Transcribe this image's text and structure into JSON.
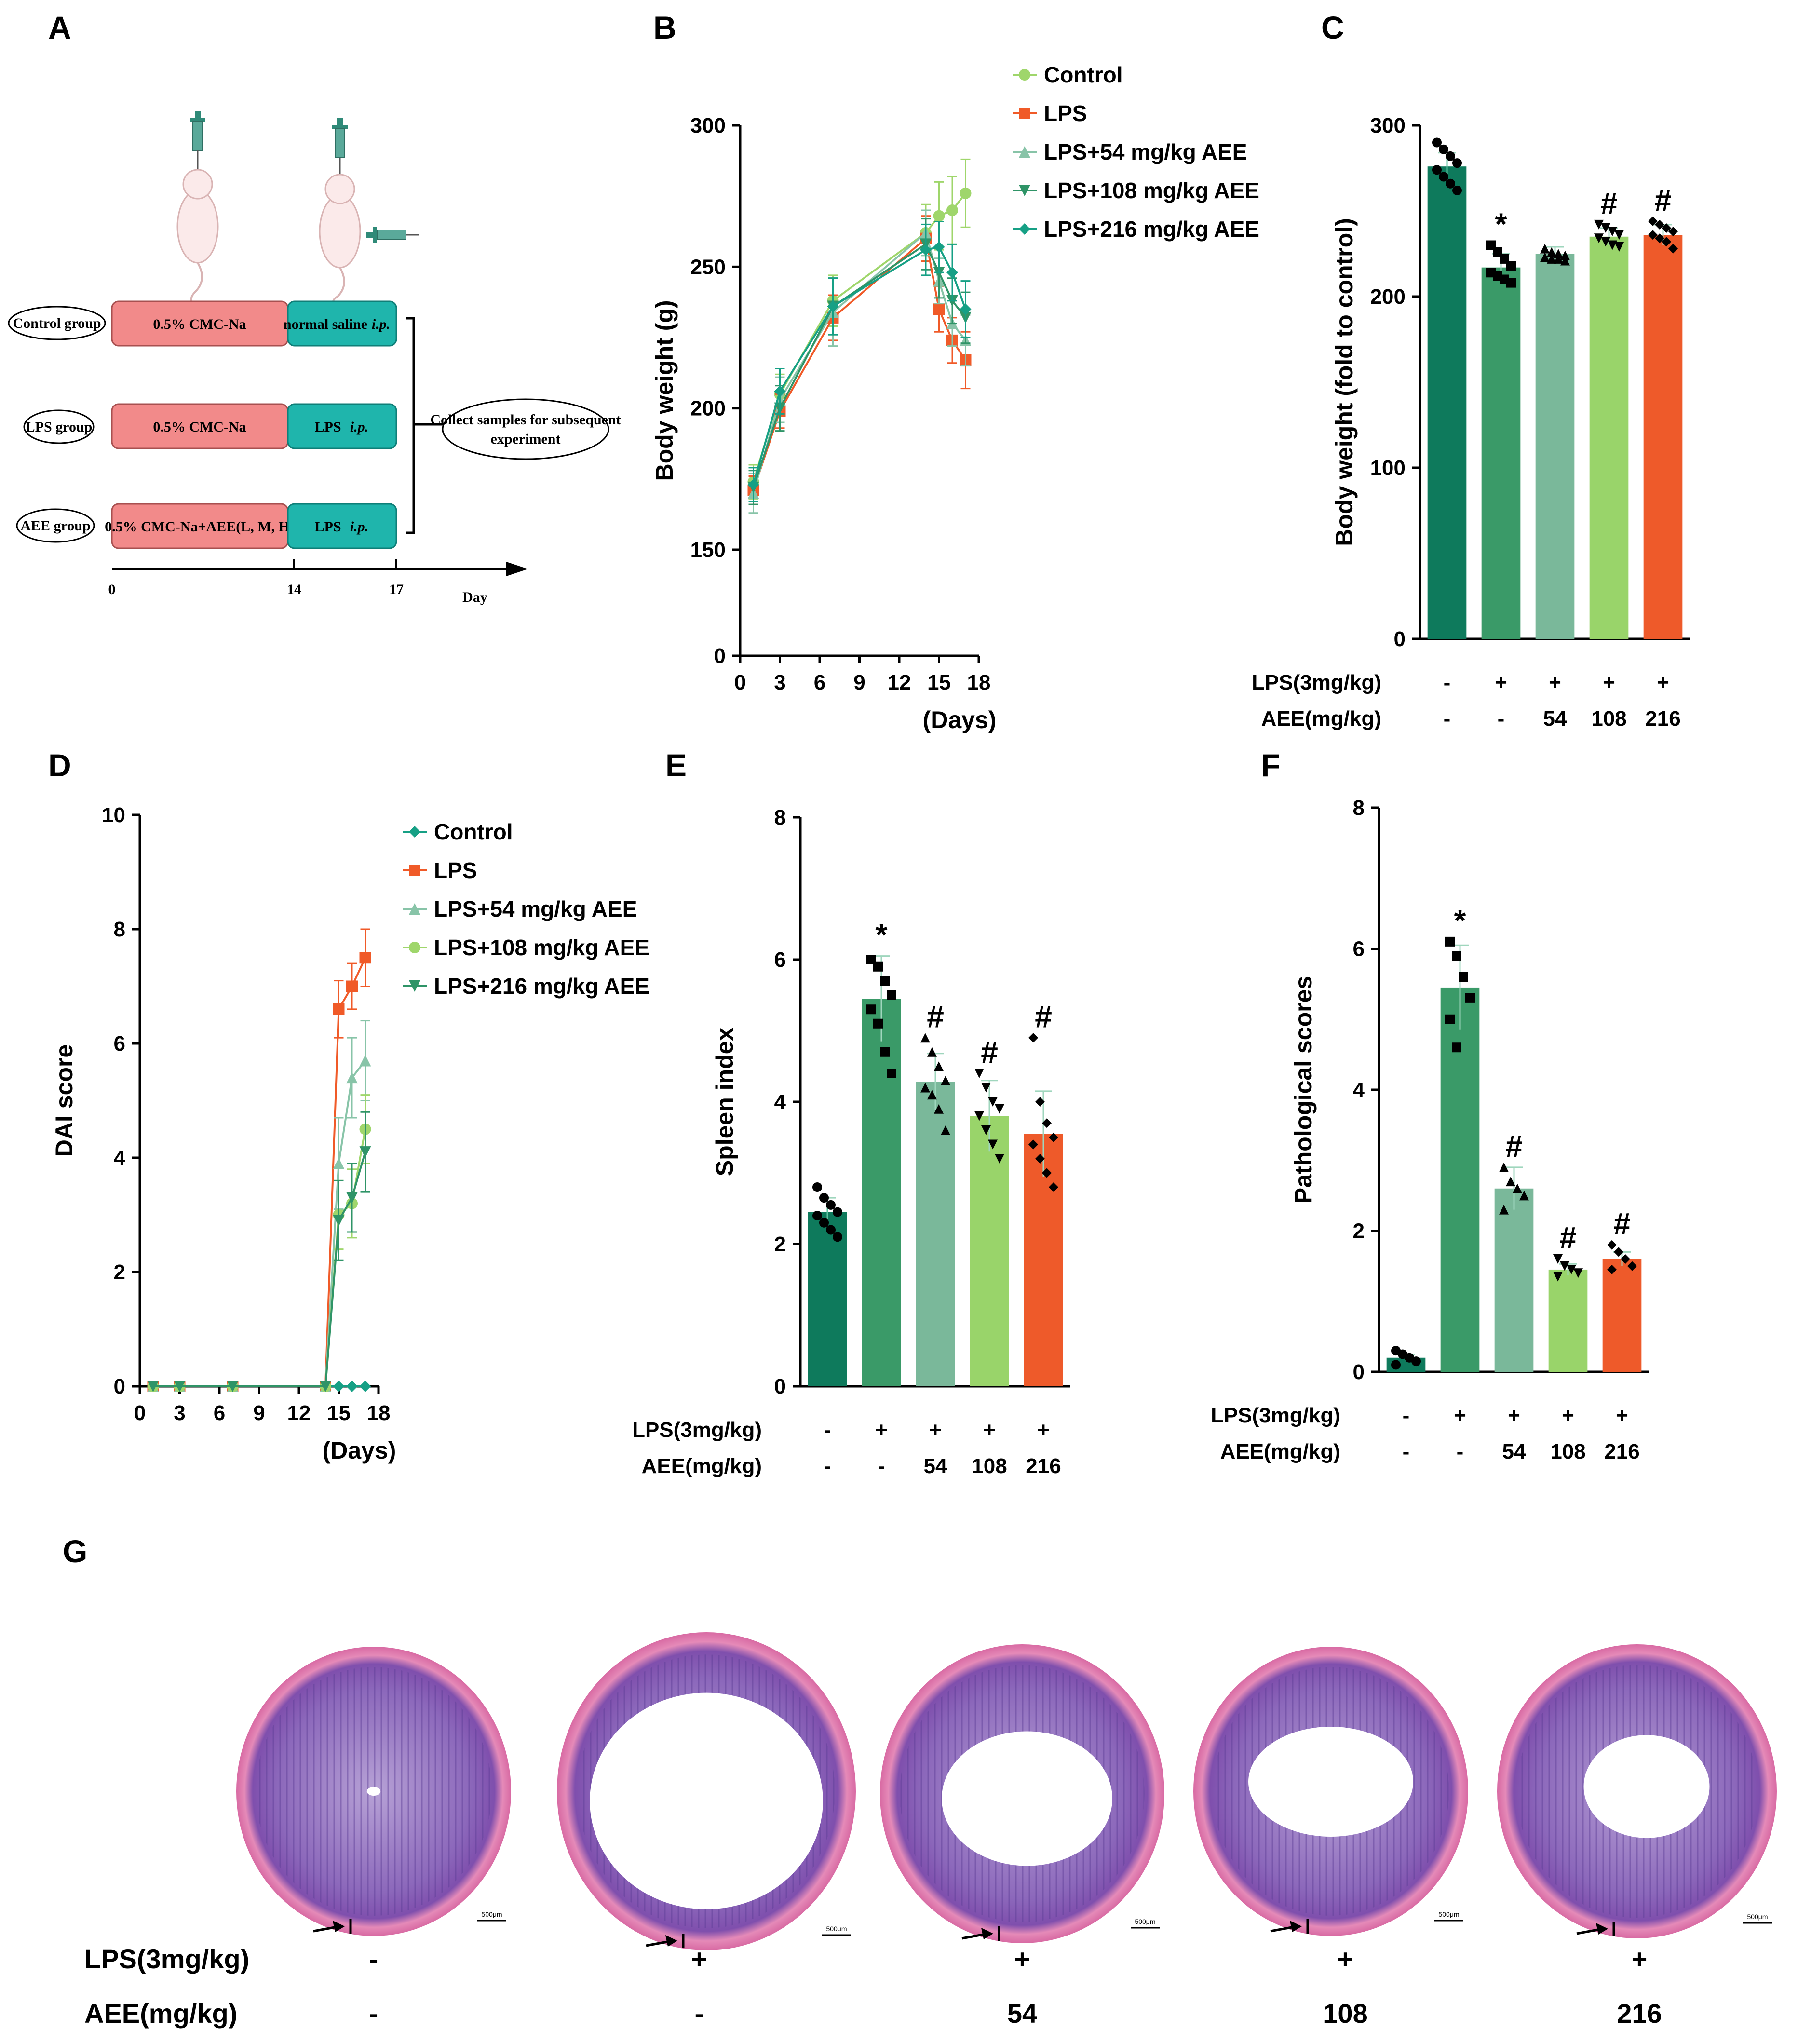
{
  "panels": {
    "A": "A",
    "B": "B",
    "C": "C",
    "D": "D",
    "E": "E",
    "F": "F",
    "G": "G"
  },
  "colors": {
    "control": "#9fd66b",
    "lps": "#f05a28",
    "aee54": "#88c4a8",
    "aee108": "#2f9467",
    "aee216": "#16a085",
    "bar_control": "#0e7a5c",
    "bar_lps": "#3a9a68",
    "bar_aee54": "#7ab89a",
    "bar_aee108": "#99d46a",
    "bar_aee216": "#ee5a2a",
    "scheme_pink": "#f28a8a",
    "scheme_teal": "#1fb5ac"
  },
  "schematic": {
    "groups": [
      {
        "label": "Control group",
        "stage1": "0.5% CMC-Na",
        "stage2": "normal saline",
        "route": "i.p."
      },
      {
        "label": "LPS group",
        "stage1": "0.5% CMC-Na",
        "stage2": "LPS",
        "route": "i.p."
      },
      {
        "label": "AEE group",
        "stage1": "0.5% CMC-Na+AEE(L, M, H)",
        "stage2": "LPS",
        "route": "i.p."
      }
    ],
    "collect_line1": "Collect samples for subsequent",
    "collect_line2": "experiment",
    "timeline_ticks": [
      "0",
      "14",
      "17"
    ],
    "timeline_label": "Day"
  },
  "legend": [
    {
      "key": "control",
      "label": "Control"
    },
    {
      "key": "lps",
      "label": "LPS"
    },
    {
      "key": "aee54",
      "label": "LPS+54 mg/kg AEE"
    },
    {
      "key": "aee108",
      "label": "LPS+108 mg/kg AEE"
    },
    {
      "key": "aee216",
      "label": "LPS+216 mg/kg AEE"
    }
  ],
  "condition_rows": {
    "lps_label": "LPS(3mg/kg)",
    "aee_label": "AEE(mg/kg)",
    "lps_values": [
      "-",
      "+",
      "+",
      "+",
      "+"
    ],
    "aee_values": [
      "-",
      "-",
      "54",
      "108",
      "216"
    ]
  },
  "chart_data": [
    {
      "id": "B",
      "type": "line",
      "title": "",
      "xlabel": "(Days)",
      "ylabel": "Body weight (g)",
      "xlim": [
        0,
        18
      ],
      "ylim": [
        0,
        300
      ],
      "xticks": [
        0,
        3,
        6,
        9,
        12,
        15,
        18
      ],
      "yticks": [
        0,
        150,
        200,
        250,
        300
      ],
      "ybreak": [
        0,
        150
      ],
      "x": [
        1,
        3,
        7,
        14,
        15,
        16,
        17
      ],
      "series": [
        {
          "name": "Control",
          "key": "control",
          "values": [
            174,
            205,
            238,
            262,
            268,
            270,
            276
          ],
          "err": [
            6,
            7,
            9,
            10,
            12,
            12,
            12
          ]
        },
        {
          "name": "LPS",
          "key": "lps",
          "values": [
            171,
            199,
            232,
            260,
            235,
            224,
            217
          ],
          "err": [
            5,
            6,
            8,
            8,
            8,
            8,
            10
          ]
        },
        {
          "name": "LPS+54 mg/kg AEE",
          "key": "aee54",
          "values": [
            170,
            203,
            234,
            262,
            245,
            230,
            224
          ],
          "err": [
            7,
            8,
            12,
            8,
            8,
            8,
            9
          ]
        },
        {
          "name": "LPS+108 mg/kg AEE",
          "key": "aee108",
          "values": [
            172,
            200,
            236,
            258,
            248,
            238,
            232
          ],
          "err": [
            6,
            8,
            10,
            9,
            9,
            8,
            9
          ]
        },
        {
          "name": "LPS+216 mg/kg AEE",
          "key": "aee216",
          "values": [
            173,
            206,
            236,
            256,
            257,
            248,
            235
          ],
          "err": [
            6,
            8,
            10,
            9,
            9,
            10,
            10
          ]
        }
      ]
    },
    {
      "id": "C",
      "type": "bar",
      "ylabel": "Body weight (fold to control)",
      "ylim": [
        0,
        300
      ],
      "yticks": [
        0,
        100,
        200,
        300
      ],
      "categories": [
        "Control",
        "LPS",
        "LPS+54",
        "LPS+108",
        "LPS+216"
      ],
      "values": [
        276,
        217,
        225,
        235,
        236
      ],
      "err": [
        8,
        8,
        4,
        5,
        6
      ],
      "points": [
        [
          290,
          286,
          282,
          278,
          274,
          270,
          266,
          262
        ],
        [
          230,
          226,
          222,
          218,
          214,
          212,
          210,
          208
        ],
        [
          228,
          226,
          225,
          224,
          223,
          222,
          222,
          221
        ],
        [
          242,
          240,
          238,
          236,
          234,
          232,
          230,
          229
        ],
        [
          244,
          242,
          240,
          238,
          236,
          234,
          232,
          228
        ]
      ],
      "annotations": [
        "",
        "*",
        "",
        "#",
        "#"
      ]
    },
    {
      "id": "D",
      "type": "line",
      "xlabel": "(Days)",
      "ylabel": "DAI score",
      "xlim": [
        0,
        18
      ],
      "ylim": [
        0,
        10
      ],
      "xticks": [
        0,
        3,
        6,
        9,
        12,
        15,
        18
      ],
      "yticks": [
        0,
        2,
        4,
        6,
        8,
        10
      ],
      "x": [
        1,
        3,
        7,
        14,
        15,
        16,
        17
      ],
      "series": [
        {
          "name": "Control",
          "key": "aee216",
          "values": [
            0,
            0,
            0,
            0,
            0,
            0,
            0
          ],
          "err": [
            0,
            0,
            0,
            0,
            0,
            0,
            0
          ]
        },
        {
          "name": "LPS",
          "key": "lps",
          "values": [
            0,
            0,
            0,
            0,
            6.6,
            7.0,
            7.5
          ],
          "err": [
            0,
            0,
            0,
            0,
            0.5,
            0.4,
            0.5
          ]
        },
        {
          "name": "LPS+54 mg/kg AEE",
          "key": "aee54",
          "values": [
            0,
            0,
            0,
            0,
            3.9,
            5.4,
            5.7
          ],
          "err": [
            0,
            0,
            0,
            0,
            0.8,
            0.7,
            0.7
          ]
        },
        {
          "name": "LPS+108 mg/kg AEE",
          "key": "control",
          "values": [
            0,
            0,
            0,
            0,
            3.0,
            3.2,
            4.5
          ],
          "err": [
            0,
            0,
            0,
            0,
            0.6,
            0.6,
            0.6
          ]
        },
        {
          "name": "LPS+216 mg/kg AEE",
          "key": "aee108",
          "values": [
            0,
            0,
            0,
            0,
            2.9,
            3.3,
            4.1
          ],
          "err": [
            0,
            0,
            0,
            0,
            0.7,
            0.6,
            0.7
          ]
        }
      ]
    },
    {
      "id": "E",
      "type": "bar",
      "ylabel": "Spleen index",
      "ylim": [
        0,
        8
      ],
      "yticks": [
        0,
        2,
        4,
        6,
        8
      ],
      "categories": [
        "Control",
        "LPS",
        "LPS+54",
        "LPS+108",
        "LPS+216"
      ],
      "values": [
        2.45,
        5.45,
        4.28,
        3.8,
        3.55
      ],
      "err": [
        0.2,
        0.6,
        0.4,
        0.5,
        0.6
      ],
      "points": [
        [
          2.8,
          2.65,
          2.55,
          2.45,
          2.4,
          2.3,
          2.2,
          2.1
        ],
        [
          6.0,
          5.9,
          5.7,
          5.5,
          5.3,
          5.1,
          4.7,
          4.4
        ],
        [
          4.9,
          4.7,
          4.5,
          4.3,
          4.2,
          4.1,
          3.9,
          3.6
        ],
        [
          4.4,
          4.2,
          4.0,
          3.9,
          3.8,
          3.6,
          3.4,
          3.2
        ],
        [
          4.9,
          4.0,
          3.7,
          3.5,
          3.4,
          3.2,
          3.0,
          2.8
        ]
      ],
      "annotations": [
        "",
        "*",
        "#",
        "#",
        "#"
      ]
    },
    {
      "id": "F",
      "type": "bar",
      "ylabel": "Pathological scores",
      "ylim": [
        0,
        8
      ],
      "yticks": [
        0,
        2,
        4,
        6,
        8
      ],
      "categories": [
        "Control",
        "LPS",
        "LPS+54",
        "LPS+108",
        "LPS+216"
      ],
      "values": [
        0.2,
        5.45,
        2.6,
        1.45,
        1.6
      ],
      "err": [
        0.05,
        0.6,
        0.3,
        0.08,
        0.1
      ],
      "points": [
        [
          0.3,
          0.25,
          0.2,
          0.15,
          0.1
        ],
        [
          6.1,
          5.9,
          5.6,
          5.3,
          5.0,
          4.6
        ],
        [
          2.9,
          2.7,
          2.6,
          2.5,
          2.3
        ],
        [
          1.6,
          1.5,
          1.45,
          1.4,
          1.35
        ],
        [
          1.8,
          1.7,
          1.6,
          1.5,
          1.45
        ]
      ],
      "annotations": [
        "",
        "*",
        "#",
        "#",
        "#"
      ]
    }
  ],
  "histology": {
    "scale_label": "500μm",
    "lps_values": [
      "-",
      "+",
      "+",
      "+",
      "+"
    ],
    "aee_values": [
      "-",
      "-",
      "54",
      "108",
      "216"
    ],
    "lps_label": "LPS(3mg/kg)",
    "aee_label": "AEE(mg/kg)"
  }
}
